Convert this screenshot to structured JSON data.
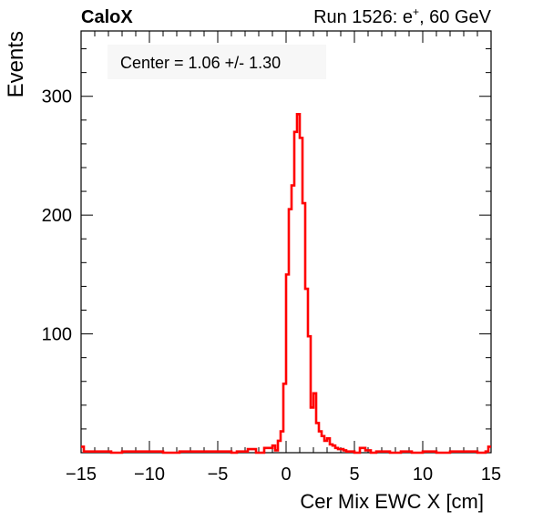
{
  "header": {
    "experiment": "CaloX",
    "run_prefix": "Run 1526: e",
    "run_sup": "+",
    "run_suffix": ", 60 GeV"
  },
  "annotation": "Center = 1.06 +/- 1.30",
  "colors": {
    "histogram": "#ff0000",
    "axis": "#000000",
    "legend_box": "#f7f7f7"
  },
  "chart_data": {
    "type": "line",
    "style": "step histogram",
    "xlabel": "Cer Mix EWC X [cm]",
    "ylabel": "Events",
    "xlim": [
      -15,
      15
    ],
    "ylim": [
      0,
      355
    ],
    "grid": false,
    "xticks": [
      -15,
      -10,
      -5,
      0,
      5,
      10,
      15
    ],
    "xtick_labels": [
      "−15",
      "−10",
      "−5",
      "0",
      "5",
      "10",
      "15"
    ],
    "yticks": [
      100,
      200,
      300
    ],
    "ytick_labels": [
      "100",
      "200",
      "300"
    ],
    "bin_width": 0.2,
    "x": [
      -15.0,
      -14.8,
      -13.0,
      -12.8,
      -12.0,
      -11.0,
      -10.2,
      -9.0,
      -7.8,
      -6.6,
      -5.0,
      -4.0,
      -3.6,
      -2.8,
      -2.2,
      -1.6,
      -1.0,
      -0.8,
      -0.6,
      -0.4,
      -0.2,
      0.0,
      0.2,
      0.4,
      0.6,
      0.8,
      1.0,
      1.2,
      1.4,
      1.6,
      1.8,
      2.0,
      2.2,
      2.4,
      2.6,
      2.8,
      3.0,
      3.2,
      3.4,
      3.6,
      3.8,
      4.0,
      4.2,
      4.4,
      4.6,
      4.8,
      5.0,
      5.4,
      5.8,
      6.2,
      6.6,
      7.0,
      7.6,
      8.4,
      9.2,
      10.0,
      11.0,
      12.0,
      13.0,
      14.0,
      14.6,
      14.8
    ],
    "values": [
      5,
      1,
      1,
      0,
      1,
      1,
      1,
      0,
      1,
      1,
      1,
      0,
      1,
      3,
      0,
      4,
      6,
      2,
      10,
      18,
      58,
      150,
      205,
      225,
      270,
      285,
      265,
      210,
      138,
      98,
      38,
      50,
      25,
      18,
      14,
      10,
      12,
      7,
      6,
      4,
      3,
      3,
      2,
      1,
      1,
      1,
      0,
      4,
      2,
      0,
      1,
      1,
      0,
      1,
      0,
      1,
      0,
      1,
      1,
      0,
      1,
      5
    ]
  }
}
